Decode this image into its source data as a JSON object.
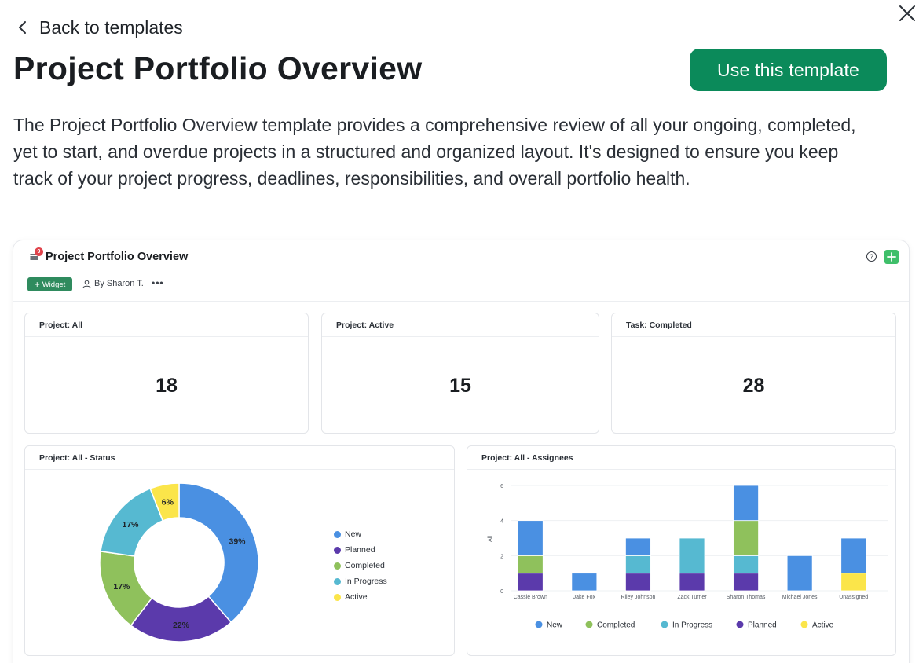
{
  "back_link": {
    "label": "Back to templates"
  },
  "page": {
    "title": "Project Portfolio Overview",
    "use_template_label": "Use this template",
    "description": "The Project Portfolio Overview template provides a comprehensive review of all your ongoing, completed, yet to start, and overdue projects in a structured and organized layout. It's designed to ensure you keep track of your project progress, deadlines, responsibilities, and overall portfolio health."
  },
  "preview": {
    "title": "Project Portfolio Overview",
    "notification_count": "9",
    "widget_label": "Widget",
    "author": "By Sharon T.",
    "more": "•••",
    "kpis": [
      {
        "title": "Project: All",
        "value": "18"
      },
      {
        "title": "Project: Active",
        "value": "15"
      },
      {
        "title": "Task: Completed",
        "value": "28"
      }
    ],
    "status_card_title": "Project: All - Status",
    "assignees_card_title": "Project: All - Assignees"
  },
  "colors": {
    "new": "#4a90e2",
    "planned": "#5b3aab",
    "completed": "#8fc15c",
    "in_progress": "#56b9d1",
    "active": "#fbe54a",
    "accent_button": "#0b8a5a"
  },
  "chart_data": [
    {
      "type": "pie",
      "title": "Project: All - Status",
      "donut": true,
      "legend_position": "right",
      "slices": [
        {
          "name": "New",
          "value": 39,
          "label": "39%",
          "color": "#4a90e2"
        },
        {
          "name": "Planned",
          "value": 22,
          "label": "22%",
          "color": "#5b3aab"
        },
        {
          "name": "Completed",
          "value": 17,
          "label": "17%",
          "color": "#8fc15c"
        },
        {
          "name": "In Progress",
          "value": 17,
          "label": "17%",
          "color": "#56b9d1"
        },
        {
          "name": "Active",
          "value": 6,
          "label": "6%",
          "color": "#fbe54a"
        }
      ],
      "legend": [
        "New",
        "Planned",
        "Completed",
        "In Progress",
        "Active"
      ]
    },
    {
      "type": "bar",
      "stacked": true,
      "title": "Project: All - Assignees",
      "ylabel": "All",
      "ylim": [
        0,
        6
      ],
      "yticks": [
        "0",
        "2",
        "4",
        "6"
      ],
      "legend_position": "bottom",
      "categories": [
        "Cassie Brown",
        "Jake Fox",
        "Riley Johnson",
        "Zack Turner",
        "Sharon Thomas",
        "Michael Jones",
        "Unassigned"
      ],
      "series": [
        {
          "name": "Planned",
          "color": "#5b3aab",
          "values": [
            1,
            0,
            1,
            1,
            1,
            0,
            0
          ]
        },
        {
          "name": "Active",
          "color": "#fbe54a",
          "values": [
            0,
            0,
            0,
            0,
            0,
            0,
            1
          ]
        },
        {
          "name": "In Progress",
          "color": "#56b9d1",
          "values": [
            0,
            0,
            1,
            2,
            1,
            0,
            0
          ]
        },
        {
          "name": "Completed",
          "color": "#8fc15c",
          "values": [
            1,
            0,
            0,
            0,
            2,
            0,
            0
          ]
        },
        {
          "name": "New",
          "color": "#4a90e2",
          "values": [
            2,
            1,
            1,
            0,
            2,
            2,
            2
          ]
        }
      ],
      "legend": [
        {
          "name": "New",
          "color": "#4a90e2"
        },
        {
          "name": "Completed",
          "color": "#8fc15c"
        },
        {
          "name": "In Progress",
          "color": "#56b9d1"
        },
        {
          "name": "Planned",
          "color": "#5b3aab"
        },
        {
          "name": "Active",
          "color": "#fbe54a"
        }
      ]
    }
  ]
}
